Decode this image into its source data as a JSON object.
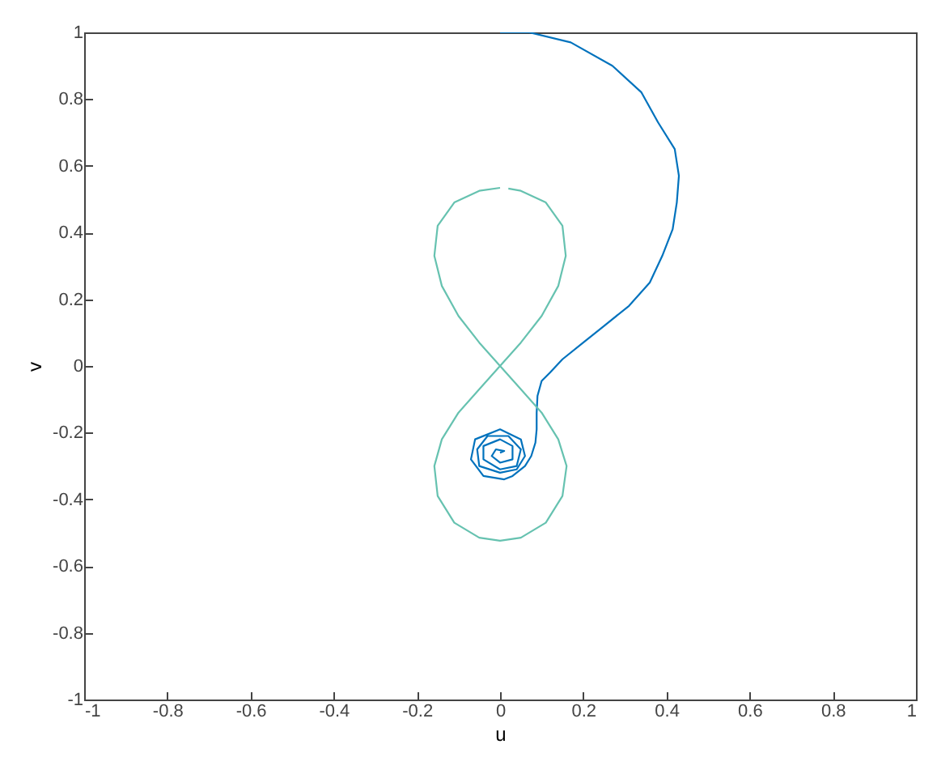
{
  "chart_data": {
    "type": "line",
    "xlabel": "u",
    "ylabel": "v",
    "xlim": [
      -1,
      1
    ],
    "ylim": [
      -1,
      1
    ],
    "xticks": [
      -1,
      -0.8,
      -0.6,
      -0.4,
      -0.2,
      0,
      0.2,
      0.4,
      0.6,
      0.8,
      1
    ],
    "yticks": [
      -1,
      -0.8,
      -0.6,
      -0.4,
      -0.2,
      0,
      0.2,
      0.4,
      0.6,
      0.8,
      1
    ],
    "series": [
      {
        "color": "#0072bd",
        "x": [
          0,
          0.07,
          0.17,
          0.27,
          0.34,
          0.38,
          0.42,
          0.43,
          0.425,
          0.415,
          0.39,
          0.36,
          0.31,
          0.25,
          0.2,
          0.15,
          0.12,
          0.1,
          0.09,
          0.088,
          0.088,
          0.085,
          0.075,
          0.06,
          0.03,
          0.01,
          -0.04,
          -0.07,
          -0.06,
          0,
          0.05,
          0.06,
          0.04,
          0,
          -0.05,
          -0.055,
          -0.03,
          0.02,
          0.05,
          0.04,
          0,
          -0.04,
          -0.04,
          0,
          0.03,
          0.03,
          0,
          -0.02,
          -0.01,
          0.01,
          0
        ],
        "values": [
          1,
          1,
          0.97,
          0.9,
          0.82,
          0.73,
          0.65,
          0.57,
          0.49,
          0.41,
          0.33,
          0.25,
          0.18,
          0.12,
          0.07,
          0.02,
          -0.02,
          -0.045,
          -0.09,
          -0.14,
          -0.19,
          -0.23,
          -0.27,
          -0.3,
          -0.33,
          -0.34,
          -0.33,
          -0.28,
          -0.22,
          -0.19,
          -0.22,
          -0.27,
          -0.31,
          -0.32,
          -0.3,
          -0.25,
          -0.21,
          -0.21,
          -0.25,
          -0.3,
          -0.31,
          -0.28,
          -0.24,
          -0.22,
          -0.24,
          -0.28,
          -0.29,
          -0.27,
          -0.25,
          -0.255,
          -0.26
        ]
      },
      {
        "color": "#66c2b0",
        "x": [
          0,
          -0.05,
          -0.11,
          -0.15,
          -0.158,
          -0.14,
          -0.1,
          -0.05,
          0.05,
          0.1,
          0.14,
          0.16,
          0.15,
          0.11,
          0.05,
          0,
          -0.05,
          -0.11,
          -0.15,
          -0.158,
          -0.14,
          -0.1,
          -0.05,
          0.05,
          0.1,
          0.14,
          0.158,
          0.15,
          0.11,
          0.05,
          0.02
        ],
        "values": [
          0.534,
          0.525,
          0.49,
          0.42,
          0.33,
          0.24,
          0.15,
          0.07,
          -0.07,
          -0.14,
          -0.22,
          -0.3,
          -0.39,
          -0.47,
          -0.515,
          -0.524,
          -0.515,
          -0.47,
          -0.39,
          -0.3,
          -0.22,
          -0.14,
          -0.07,
          0.07,
          0.15,
          0.24,
          0.33,
          0.42,
          0.49,
          0.525,
          0.532
        ]
      }
    ]
  }
}
